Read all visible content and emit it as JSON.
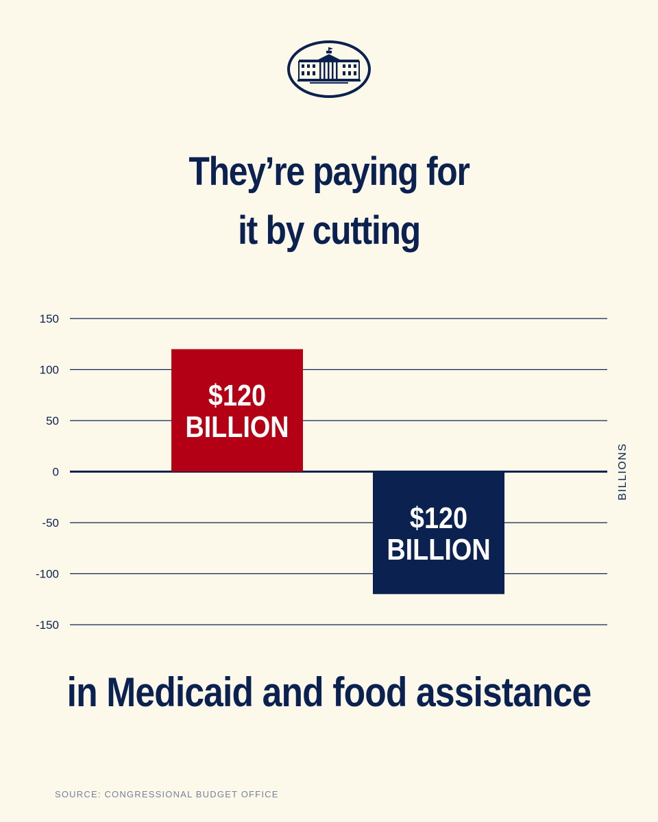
{
  "logo": {
    "icon": "white-house-icon"
  },
  "headline": {
    "line1": "They’re paying for",
    "line2": "it by cutting"
  },
  "chart_data": {
    "type": "bar",
    "categories": [
      "",
      ""
    ],
    "values": [
      120,
      -120
    ],
    "bar_labels": [
      [
        "$120",
        "BILLION"
      ],
      [
        "$120",
        "BILLION"
      ]
    ],
    "bar_colors": [
      "#b30014",
      "#0b2150"
    ],
    "ylabel": "BILLIONS",
    "ylim": [
      -150,
      150
    ],
    "yticks": [
      150,
      100,
      50,
      0,
      -50,
      -100,
      -150
    ],
    "grid": true
  },
  "caption": "in Medicaid and food assistance",
  "source": "SOURCE: CONGRESSIONAL BUDGET OFFICE",
  "colors": {
    "background": "#fcf8ea",
    "navy": "#0b2150",
    "red": "#b30014"
  }
}
